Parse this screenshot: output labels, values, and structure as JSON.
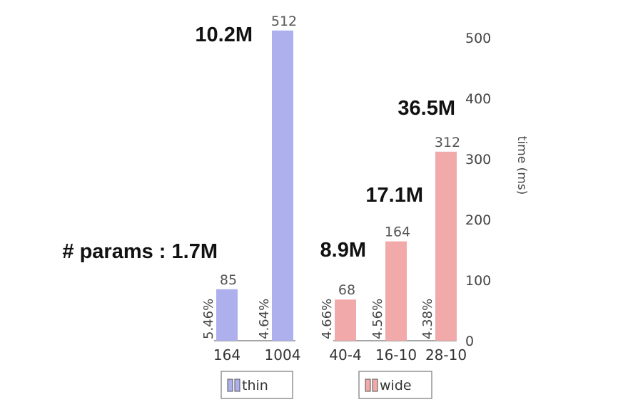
{
  "chart_data": {
    "type": "bar",
    "ylabel": "time (ms)",
    "ylim": [
      0,
      500
    ],
    "yticks": [
      0,
      100,
      200,
      300,
      400,
      500
    ],
    "groups": [
      {
        "legend": "thin",
        "color": "#aeb0ee",
        "bars": [
          {
            "category": "164",
            "value": 85,
            "pct": "5.46%",
            "params": "# params : 1.7M"
          },
          {
            "category": "1004",
            "value": 512,
            "pct": "4.64%",
            "params": "10.2M"
          }
        ]
      },
      {
        "legend": "wide",
        "color": "#f1a9a9",
        "bars": [
          {
            "category": "40-4",
            "value": 68,
            "pct": "4.66%",
            "params": "8.9M"
          },
          {
            "category": "16-10",
            "value": 164,
            "pct": "4.56%",
            "params": "17.1M"
          },
          {
            "category": "28-10",
            "value": 312,
            "pct": "4.38%",
            "params": "36.5M"
          }
        ]
      }
    ]
  }
}
